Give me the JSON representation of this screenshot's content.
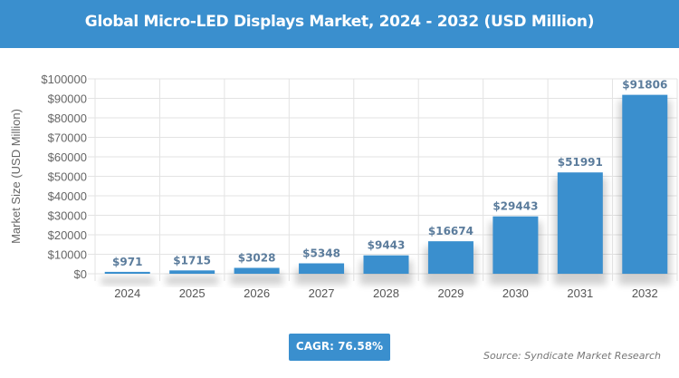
{
  "header": {
    "title": "Global Micro-LED Displays Market, 2024 - 2032 (USD Million)"
  },
  "chart_data": {
    "type": "bar",
    "title": "Global Micro-LED Displays Market, 2024 - 2032 (USD Million)",
    "xlabel": "",
    "ylabel": "Market Size (USD Million)",
    "categories": [
      "2024",
      "2025",
      "2026",
      "2027",
      "2028",
      "2029",
      "2030",
      "2031",
      "2032"
    ],
    "values": [
      971,
      1715,
      3028,
      5348,
      9443,
      16674,
      29443,
      51991,
      91806
    ],
    "data_labels": [
      "$971",
      "$1715",
      "$3028",
      "$5348",
      "$9443",
      "$16674",
      "$29443",
      "$51991",
      "$91806"
    ],
    "ylim": [
      0,
      100000
    ],
    "yticks": [
      "$0",
      "$10000",
      "$20000",
      "$30000",
      "$40000",
      "$50000",
      "$60000",
      "$70000",
      "$80000",
      "$90000",
      "$100000"
    ],
    "grid": true,
    "bar_color": "#3a8fce",
    "label_color": "#5b7c9c"
  },
  "footer": {
    "cagr": "CAGR: 76.58%",
    "source": "Source: Syndicate Market Research"
  }
}
